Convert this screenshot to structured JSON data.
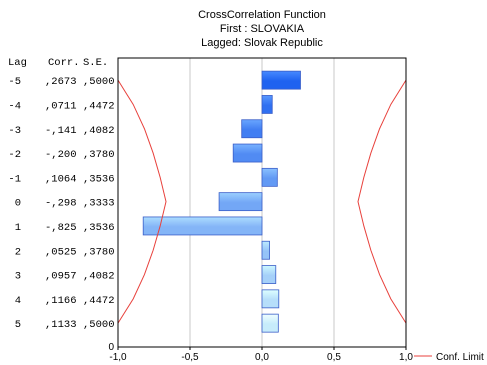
{
  "chart_data": {
    "type": "bar",
    "orientation": "horizontal",
    "title": "CrossCorrelation Function",
    "subtitle_1": "First : SLOVAKIA",
    "subtitle_2": "Lagged: Slovak Republic",
    "column_headers": {
      "lag": "Lag",
      "corr": "Corr.",
      "se": "S.E."
    },
    "rows": [
      {
        "lag": "-5",
        "corr_label": ",2673",
        "se_label": ",5000",
        "corr": 0.2673,
        "se": 0.5
      },
      {
        "lag": "-4",
        "corr_label": ",0711",
        "se_label": ",4472",
        "corr": 0.0711,
        "se": 0.4472
      },
      {
        "lag": "-3",
        "corr_label": "-,141",
        "se_label": ",4082",
        "corr": -0.141,
        "se": 0.4082
      },
      {
        "lag": "-2",
        "corr_label": "-,200",
        "se_label": ",3780",
        "corr": -0.2,
        "se": 0.378
      },
      {
        "lag": "-1",
        "corr_label": ",1064",
        "se_label": ",3536",
        "corr": 0.1064,
        "se": 0.3536
      },
      {
        "lag": "0",
        "corr_label": "-,298",
        "se_label": ",3333",
        "corr": -0.298,
        "se": 0.3333
      },
      {
        "lag": "1",
        "corr_label": "-,825",
        "se_label": ",3536",
        "corr": -0.825,
        "se": 0.3536
      },
      {
        "lag": "2",
        "corr_label": ",0525",
        "se_label": ",3780",
        "corr": 0.0525,
        "se": 0.378
      },
      {
        "lag": "3",
        "corr_label": ",0957",
        "se_label": ",4082",
        "corr": 0.0957,
        "se": 0.4082
      },
      {
        "lag": "4",
        "corr_label": ",1166",
        "se_label": ",4472",
        "corr": 0.1166,
        "se": 0.4472
      },
      {
        "lag": "5",
        "corr_label": ",1133",
        "se_label": ",5000",
        "corr": 0.1133,
        "se": 0.5
      }
    ],
    "xlim": [
      -1.0,
      1.0
    ],
    "x_ticks": [
      -1.0,
      -0.5,
      0.0,
      0.5,
      1.0
    ],
    "x_tick_labels": [
      "-1,0",
      "-0,5",
      "0,0",
      "0,5",
      "1,0"
    ],
    "y_zero_label": "0",
    "grid": true,
    "legend": {
      "label": "Conf. Limit",
      "color": "#e8413c",
      "placement": "bottom-right"
    },
    "colors": {
      "bar_deep": "#1f62f0",
      "bar_light": "#c7ecfb",
      "bar_edge": "#3a5ec8",
      "conf_limit": "#e8413c",
      "grid": "#c9c9c9"
    }
  }
}
